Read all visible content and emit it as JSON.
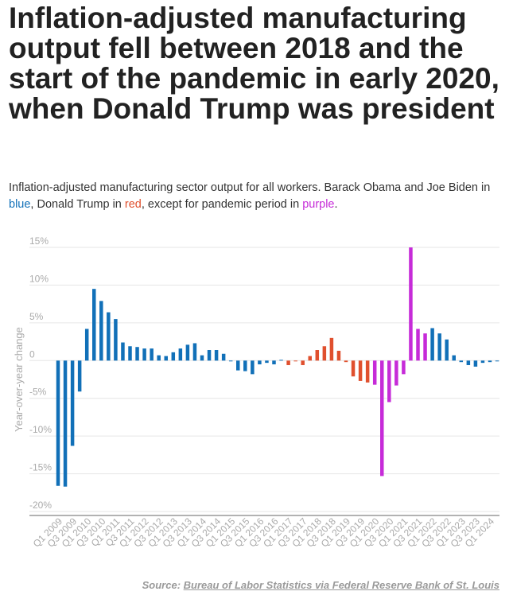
{
  "title": "Inflation-adjusted manufacturing output fell between 2018 and the start of the pandemic in early 2020, when Donald Trump was president",
  "subtitle": {
    "part1": "Inflation-adjusted manufacturing sector output for all workers. Barack Obama and Joe Biden in ",
    "blue_word": "blue",
    "part2": ", Donald Trump in ",
    "red_word": "red",
    "part3": ", except for pandemic period in ",
    "purple_word": "purple",
    "part4": "."
  },
  "colors": {
    "obama_biden": "#1170b8",
    "trump": "#e0502e",
    "pandemic": "#c62bd8",
    "grid": "#e6e6e6",
    "axis_text": "#aaaaaa"
  },
  "source": {
    "label": "Source:",
    "link_text": "Bureau of Labor Statistics via Federal Reserve Bank of St. Louis"
  },
  "chart_data": {
    "type": "bar",
    "ylabel": "Year-over-year change",
    "ylim": [
      -20,
      15
    ],
    "yticks": [
      15,
      10,
      5,
      0,
      -5,
      -10,
      -15,
      -20
    ],
    "ytick_labels": [
      "15%",
      "10%",
      "5%",
      "0",
      "-5%",
      "-10%",
      "-15%",
      "-20%"
    ],
    "xtick_labels": [
      "Q1 2009",
      "Q3 2009",
      "Q1 2010",
      "Q3 2010",
      "Q1 2011",
      "Q3 2011",
      "Q1 2012",
      "Q3 2012",
      "Q1 2013",
      "Q3 2013",
      "Q1 2014",
      "Q3 2014",
      "Q1 2015",
      "Q3 2015",
      "Q1 2016",
      "Q3 2016",
      "Q1 2017",
      "Q3 2017",
      "Q1 2018",
      "Q3 2018",
      "Q1 2019",
      "Q3 2019",
      "Q1 2020",
      "Q3 2020",
      "Q1 2021",
      "Q3 2021",
      "Q1 2022",
      "Q3 2022",
      "Q1 2023",
      "Q3 2023",
      "Q1 2024"
    ],
    "legend": "in subtitle",
    "grid": true,
    "quarters": [
      "Q1 2009",
      "Q2 2009",
      "Q3 2009",
      "Q4 2009",
      "Q1 2010",
      "Q2 2010",
      "Q3 2010",
      "Q4 2010",
      "Q1 2011",
      "Q2 2011",
      "Q3 2011",
      "Q4 2011",
      "Q1 2012",
      "Q2 2012",
      "Q3 2012",
      "Q4 2012",
      "Q1 2013",
      "Q2 2013",
      "Q3 2013",
      "Q4 2013",
      "Q1 2014",
      "Q2 2014",
      "Q3 2014",
      "Q4 2014",
      "Q1 2015",
      "Q2 2015",
      "Q3 2015",
      "Q4 2015",
      "Q1 2016",
      "Q2 2016",
      "Q3 2016",
      "Q4 2016",
      "Q1 2017",
      "Q2 2017",
      "Q3 2017",
      "Q4 2017",
      "Q1 2018",
      "Q2 2018",
      "Q3 2018",
      "Q4 2018",
      "Q1 2019",
      "Q2 2019",
      "Q3 2019",
      "Q4 2019",
      "Q1 2020",
      "Q2 2020",
      "Q3 2020",
      "Q4 2020",
      "Q1 2021",
      "Q2 2021",
      "Q3 2021",
      "Q4 2021",
      "Q1 2022",
      "Q2 2022",
      "Q3 2022",
      "Q4 2022",
      "Q1 2023",
      "Q2 2023",
      "Q3 2023",
      "Q4 2023",
      "Q1 2024",
      "Q2 2024"
    ],
    "values": [
      -16.6,
      -16.7,
      -11.3,
      -4.1,
      4.2,
      9.5,
      7.9,
      6.4,
      5.5,
      2.4,
      1.9,
      1.8,
      1.6,
      1.6,
      0.7,
      0.6,
      1.1,
      1.6,
      2.1,
      2.3,
      0.7,
      1.4,
      1.4,
      0.9,
      0,
      -1.3,
      -1.4,
      -1.8,
      -0.5,
      -0.3,
      -0.5,
      0.1,
      -0.6,
      0,
      -0.6,
      0.6,
      1.4,
      1.9,
      3.0,
      1.3,
      -0.2,
      -2.1,
      -2.7,
      -2.9,
      -3.2,
      -15.3,
      -5.5,
      -3.3,
      -1.8,
      15.0,
      4.2,
      3.6,
      4.3,
      3.6,
      2.8,
      0.7,
      -0.2,
      -0.6,
      -0.8,
      -0.3,
      -0.2,
      0
    ],
    "periods": [
      "obama",
      "obama",
      "obama",
      "obama",
      "obama",
      "obama",
      "obama",
      "obama",
      "obama",
      "obama",
      "obama",
      "obama",
      "obama",
      "obama",
      "obama",
      "obama",
      "obama",
      "obama",
      "obama",
      "obama",
      "obama",
      "obama",
      "obama",
      "obama",
      "obama",
      "obama",
      "obama",
      "obama",
      "obama",
      "obama",
      "obama",
      "obama",
      "trump",
      "trump",
      "trump",
      "trump",
      "trump",
      "trump",
      "trump",
      "trump",
      "trump",
      "trump",
      "trump",
      "trump",
      "pandemic",
      "pandemic",
      "pandemic",
      "pandemic",
      "pandemic",
      "pandemic",
      "pandemic",
      "pandemic",
      "biden",
      "biden",
      "biden",
      "biden",
      "biden",
      "biden",
      "biden",
      "biden",
      "biden",
      "biden"
    ]
  }
}
